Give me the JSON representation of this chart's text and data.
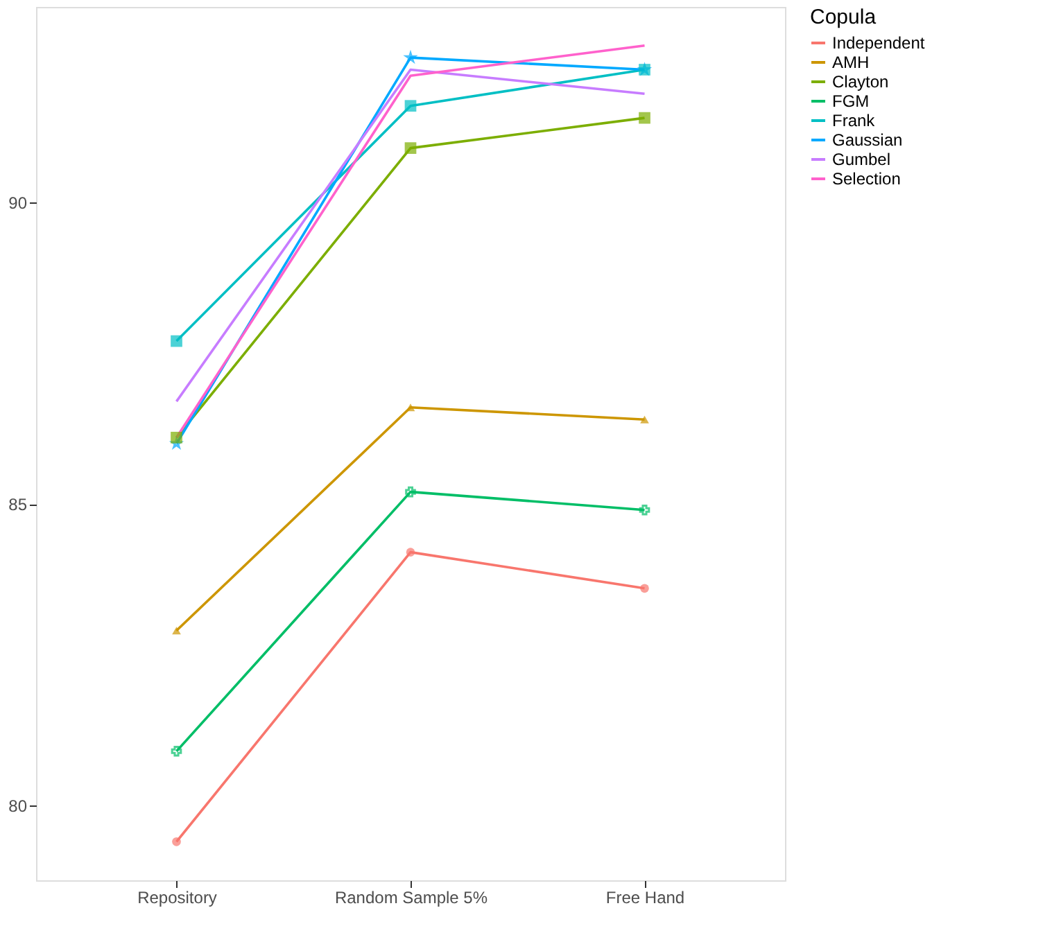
{
  "chart_data": {
    "type": "line",
    "categories": [
      "Repository",
      "Random Sample 5%",
      "Free Hand"
    ],
    "legend_title": "Copula",
    "legend": "right",
    "grid": false,
    "ylim": [
      78.76,
      93.24
    ],
    "yticks": [
      80,
      85,
      90
    ],
    "series": [
      {
        "name": "Independent",
        "color": "#f8766d",
        "marker": "circle",
        "values": [
          79.4,
          84.2,
          83.6
        ]
      },
      {
        "name": "AMH",
        "color": "#cd9600",
        "marker": "triangle",
        "values": [
          82.9,
          86.6,
          86.4
        ]
      },
      {
        "name": "Clayton",
        "color": "#7cae00",
        "marker": "square",
        "values": [
          86.1,
          90.9,
          91.4
        ]
      },
      {
        "name": "FGM",
        "color": "#00be67",
        "marker": "cross",
        "values": [
          80.9,
          85.2,
          84.9
        ]
      },
      {
        "name": "Frank",
        "color": "#00bfc4",
        "marker": "square",
        "values": [
          87.7,
          91.6,
          92.2
        ]
      },
      {
        "name": "Gaussian",
        "color": "#00a9ff",
        "marker": "star",
        "values": [
          86.0,
          92.4,
          92.2
        ]
      },
      {
        "name": "Gumbel",
        "color": "#c77cff",
        "marker": "none",
        "values": [
          86.7,
          92.2,
          91.8
        ]
      },
      {
        "name": "Selection",
        "color": "#ff61cc",
        "marker": "none",
        "values": [
          86.1,
          92.1,
          92.6
        ]
      }
    ]
  }
}
